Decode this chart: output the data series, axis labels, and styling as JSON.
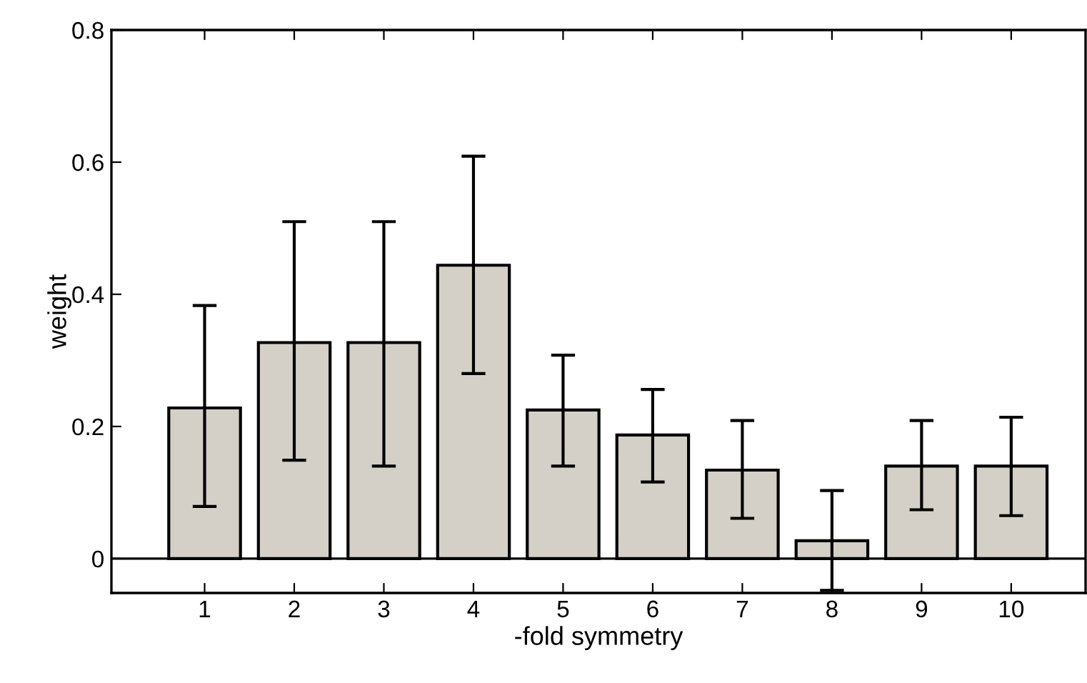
{
  "chart_data": {
    "type": "bar",
    "xlabel": "-fold symmetry",
    "ylabel": "weight",
    "categories": [
      "1",
      "2",
      "3",
      "4",
      "5",
      "6",
      "7",
      "8",
      "9",
      "10"
    ],
    "values": [
      0.228,
      0.327,
      0.327,
      0.444,
      0.225,
      0.187,
      0.134,
      0.027,
      0.14,
      0.14
    ],
    "errors": [
      [
        0.079,
        0.383
      ],
      [
        0.149,
        0.51
      ],
      [
        0.14,
        0.51
      ],
      [
        0.28,
        0.609
      ],
      [
        0.14,
        0.308
      ],
      [
        0.116,
        0.256
      ],
      [
        0.061,
        0.209
      ],
      [
        -0.048,
        0.103
      ],
      [
        0.074,
        0.209
      ],
      [
        0.065,
        0.214
      ]
    ],
    "color": "#d4d0c8",
    "ylim": [
      -0.052,
      0.8
    ],
    "yticks": [
      0,
      0.2,
      0.4,
      0.6,
      0.8
    ],
    "ref_lines": [
      {
        "axis": "y",
        "value": 0,
        "color": "#000000"
      }
    ],
    "grid": false,
    "legend": false
  }
}
